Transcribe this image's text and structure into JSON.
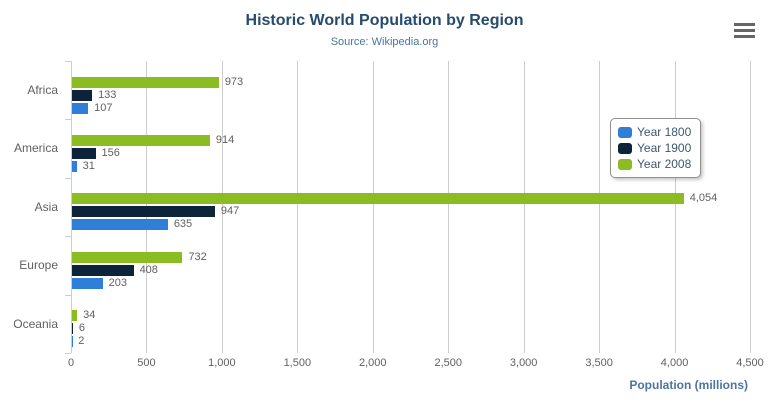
{
  "chart": {
    "title": "Historic World Population by Region",
    "subtitle": "Source: Wikipedia.org",
    "axis_title": "Population (millions)"
  },
  "legend": {
    "items": [
      {
        "label": "Year 1800",
        "color": "#2f7ed8"
      },
      {
        "label": "Year 1900",
        "color": "#0d233a"
      },
      {
        "label": "Year 2008",
        "color": "#8bbc21"
      }
    ]
  },
  "menu": {
    "icon": "hamburger-menu-icon"
  },
  "chart_data": {
    "type": "bar",
    "orientation": "horizontal",
    "title": "Historic World Population by Region",
    "subtitle": "Source: Wikipedia.org",
    "categories": [
      "Africa",
      "America",
      "Asia",
      "Europe",
      "Oceania"
    ],
    "series": [
      {
        "name": "Year 1800",
        "color": "#2f7ed8",
        "values": [
          107,
          31,
          635,
          203,
          2
        ]
      },
      {
        "name": "Year 1900",
        "color": "#0d233a",
        "values": [
          133,
          156,
          947,
          408,
          6
        ]
      },
      {
        "name": "Year 2008",
        "color": "#8bbc21",
        "values": [
          973,
          914,
          4054,
          732,
          34
        ]
      }
    ],
    "display_series_order_top_to_bottom": [
      "Year 2008",
      "Year 1900",
      "Year 1800"
    ],
    "xlabel": "Population (millions)",
    "ylabel": "",
    "xlim": [
      0,
      4500
    ],
    "xticks": [
      0,
      500,
      1000,
      1500,
      2000,
      2500,
      3000,
      3500,
      4000,
      4500
    ],
    "grid": true,
    "data_labels": true,
    "legend_position": "right",
    "colors": {
      "title": "#274b6d",
      "subtitle": "#4d759e",
      "axis_title": "#4d759e",
      "labels": "#606060",
      "gridline": "#cdcdcd",
      "axis_line": "#c0d0e0",
      "legend_text": "#3e576f",
      "legend_border": "#909090"
    }
  }
}
